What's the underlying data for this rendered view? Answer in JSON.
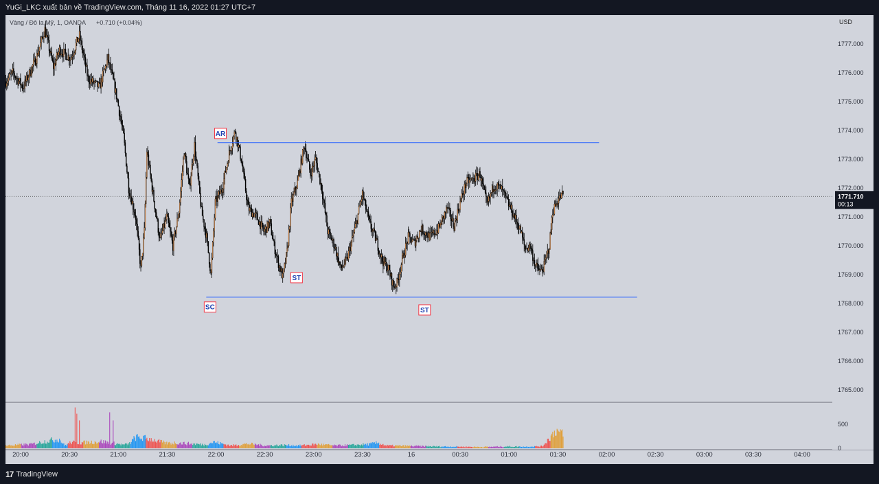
{
  "header": {
    "published": "YuGi_LKC xuất bản về TradingView.com, Tháng 11 16, 2022 01:27 UTC+7"
  },
  "legend": {
    "symbol": "Vàng / Đô la Mỹ, 1, OANDA",
    "change": "+0.710 (+0.04%)"
  },
  "footer": {
    "brand": "TradingView"
  },
  "colors": {
    "background": "#d1d4dc",
    "up": "#f7a35c",
    "down": "#000000",
    "range_line": "#2962ff",
    "label_border": "#f23645",
    "volume_colors": [
      "#e0a03b",
      "#ab47bc",
      "#26a69a",
      "#2196f3",
      "#ef5350"
    ]
  },
  "chart_data": {
    "type": "candlestick",
    "currency": "USD",
    "ylim": [
      1764.6,
      1778.0
    ],
    "y_ticks": [
      "1777.000",
      "1776.000",
      "1775.000",
      "1774.000",
      "1773.000",
      "1772.000",
      "1771.000",
      "1770.000",
      "1769.000",
      "1768.000",
      "1767.000",
      "1766.000",
      "1765.000"
    ],
    "x_ticks": [
      "20:00",
      "20:30",
      "21:00",
      "21:30",
      "22:00",
      "22:30",
      "23:00",
      "23:30",
      "16",
      "00:30",
      "01:00",
      "01:30",
      "02:00",
      "02:30",
      "03:00",
      "03:30",
      "04:00"
    ],
    "last_price": {
      "value": 1771.71,
      "label": "1771.710",
      "countdown": "00:13"
    },
    "volume_axis": {
      "ticks": [
        "500",
        "0"
      ],
      "max": 900
    },
    "price_path": [
      {
        "x": 0,
        "y": 1775.7
      },
      {
        "x": 8,
        "y": 1776.0
      },
      {
        "x": 20,
        "y": 1775.5
      },
      {
        "x": 35,
        "y": 1776.5
      },
      {
        "x": 45,
        "y": 1777.5
      },
      {
        "x": 55,
        "y": 1776.2
      },
      {
        "x": 62,
        "y": 1776.8
      },
      {
        "x": 75,
        "y": 1776.5
      },
      {
        "x": 85,
        "y": 1777.3
      },
      {
        "x": 95,
        "y": 1775.8
      },
      {
        "x": 108,
        "y": 1775.5
      },
      {
        "x": 118,
        "y": 1776.5
      },
      {
        "x": 128,
        "y": 1775.2
      },
      {
        "x": 136,
        "y": 1773.8
      },
      {
        "x": 142,
        "y": 1772.0
      },
      {
        "x": 150,
        "y": 1771.0
      },
      {
        "x": 156,
        "y": 1769.2
      },
      {
        "x": 160,
        "y": 1770.5
      },
      {
        "x": 163,
        "y": 1773.3
      },
      {
        "x": 170,
        "y": 1771.8
      },
      {
        "x": 178,
        "y": 1770.2
      },
      {
        "x": 186,
        "y": 1771.0
      },
      {
        "x": 193,
        "y": 1770.0
      },
      {
        "x": 200,
        "y": 1771.2
      },
      {
        "x": 206,
        "y": 1773.3
      },
      {
        "x": 212,
        "y": 1772.0
      },
      {
        "x": 218,
        "y": 1773.5
      },
      {
        "x": 226,
        "y": 1771.2
      },
      {
        "x": 232,
        "y": 1770.3
      },
      {
        "x": 237,
        "y": 1769.0
      },
      {
        "x": 242,
        "y": 1771.5
      },
      {
        "x": 250,
        "y": 1772.0
      },
      {
        "x": 258,
        "y": 1773.2
      },
      {
        "x": 265,
        "y": 1774.0
      },
      {
        "x": 272,
        "y": 1773.0
      },
      {
        "x": 280,
        "y": 1771.3
      },
      {
        "x": 290,
        "y": 1771.0
      },
      {
        "x": 298,
        "y": 1770.5
      },
      {
        "x": 305,
        "y": 1770.8
      },
      {
        "x": 310,
        "y": 1770.0
      },
      {
        "x": 315,
        "y": 1769.4
      },
      {
        "x": 320,
        "y": 1768.9
      },
      {
        "x": 325,
        "y": 1769.8
      },
      {
        "x": 330,
        "y": 1771.5
      },
      {
        "x": 337,
        "y": 1772.2
      },
      {
        "x": 345,
        "y": 1773.5
      },
      {
        "x": 352,
        "y": 1772.5
      },
      {
        "x": 358,
        "y": 1773.0
      },
      {
        "x": 365,
        "y": 1772.0
      },
      {
        "x": 372,
        "y": 1770.5
      },
      {
        "x": 380,
        "y": 1770.0
      },
      {
        "x": 387,
        "y": 1769.2
      },
      {
        "x": 394,
        "y": 1769.5
      },
      {
        "x": 400,
        "y": 1770.2
      },
      {
        "x": 405,
        "y": 1770.8
      },
      {
        "x": 412,
        "y": 1771.8
      },
      {
        "x": 420,
        "y": 1770.8
      },
      {
        "x": 428,
        "y": 1770.2
      },
      {
        "x": 435,
        "y": 1769.5
      },
      {
        "x": 442,
        "y": 1769.2
      },
      {
        "x": 448,
        "y": 1768.6
      },
      {
        "x": 452,
        "y": 1768.7
      },
      {
        "x": 458,
        "y": 1769.5
      },
      {
        "x": 465,
        "y": 1770.3
      },
      {
        "x": 472,
        "y": 1770.1
      },
      {
        "x": 480,
        "y": 1770.6
      },
      {
        "x": 490,
        "y": 1770.3
      },
      {
        "x": 500,
        "y": 1770.6
      },
      {
        "x": 510,
        "y": 1771.3
      },
      {
        "x": 518,
        "y": 1770.7
      },
      {
        "x": 525,
        "y": 1771.5
      },
      {
        "x": 532,
        "y": 1772.2
      },
      {
        "x": 540,
        "y": 1772.3
      },
      {
        "x": 548,
        "y": 1772.5
      },
      {
        "x": 556,
        "y": 1771.4
      },
      {
        "x": 564,
        "y": 1772.1
      },
      {
        "x": 572,
        "y": 1772.0
      },
      {
        "x": 580,
        "y": 1771.5
      },
      {
        "x": 588,
        "y": 1771.0
      },
      {
        "x": 595,
        "y": 1770.5
      },
      {
        "x": 600,
        "y": 1769.9
      },
      {
        "x": 606,
        "y": 1770.0
      },
      {
        "x": 612,
        "y": 1769.3
      },
      {
        "x": 618,
        "y": 1769.1
      },
      {
        "x": 622,
        "y": 1769.3
      },
      {
        "x": 628,
        "y": 1770.0
      },
      {
        "x": 632,
        "y": 1771.2
      },
      {
        "x": 638,
        "y": 1771.6
      },
      {
        "x": 644,
        "y": 1771.8
      }
    ],
    "volume_profile": [
      {
        "x": 0,
        "v": 60
      },
      {
        "x": 30,
        "v": 90
      },
      {
        "x": 50,
        "v": 170
      },
      {
        "x": 62,
        "v": 200
      },
      {
        "x": 68,
        "v": 60
      },
      {
        "x": 75,
        "v": 130
      },
      {
        "x": 85,
        "v": 120
      },
      {
        "x": 110,
        "v": 150
      },
      {
        "x": 125,
        "v": 110
      },
      {
        "x": 135,
        "v": 80
      },
      {
        "x": 142,
        "v": 90
      },
      {
        "x": 150,
        "v": 240
      },
      {
        "x": 165,
        "v": 210
      },
      {
        "x": 185,
        "v": 110
      },
      {
        "x": 195,
        "v": 120
      },
      {
        "x": 215,
        "v": 100
      },
      {
        "x": 230,
        "v": 80
      },
      {
        "x": 240,
        "v": 140
      },
      {
        "x": 260,
        "v": 60
      },
      {
        "x": 280,
        "v": 100
      },
      {
        "x": 300,
        "v": 60
      },
      {
        "x": 320,
        "v": 70
      },
      {
        "x": 340,
        "v": 60
      },
      {
        "x": 360,
        "v": 90
      },
      {
        "x": 380,
        "v": 60
      },
      {
        "x": 400,
        "v": 70
      },
      {
        "x": 420,
        "v": 90
      },
      {
        "x": 430,
        "v": 120
      },
      {
        "x": 440,
        "v": 60
      },
      {
        "x": 470,
        "v": 50
      },
      {
        "x": 500,
        "v": 40
      },
      {
        "x": 550,
        "v": 30
      },
      {
        "x": 580,
        "v": 40
      },
      {
        "x": 600,
        "v": 35
      },
      {
        "x": 620,
        "v": 45
      },
      {
        "x": 636,
        "v": 400
      },
      {
        "x": 644,
        "v": 300
      }
    ],
    "volume_spikes": [
      {
        "x": 80,
        "v": 850
      },
      {
        "x": 82,
        "v": 720
      },
      {
        "x": 85,
        "v": 580
      },
      {
        "x": 120,
        "v": 750
      },
      {
        "x": 124,
        "v": 580
      },
      {
        "x": 640,
        "v": 340
      }
    ],
    "resistance": {
      "y": 1773.58,
      "x_start": 245,
      "x_end": 686
    },
    "support": {
      "y": 1768.22,
      "x_start": 232,
      "x_end": 730
    },
    "annotations": [
      {
        "label": "AR",
        "x": 248,
        "y": 1773.6,
        "position": "above"
      },
      {
        "label": "SC",
        "x": 236,
        "y": 1768.2,
        "position": "below"
      },
      {
        "label": "ST",
        "x": 336,
        "y": 1768.6,
        "position": "above"
      },
      {
        "label": "ST",
        "x": 484,
        "y": 1768.1,
        "position": "below"
      }
    ]
  }
}
